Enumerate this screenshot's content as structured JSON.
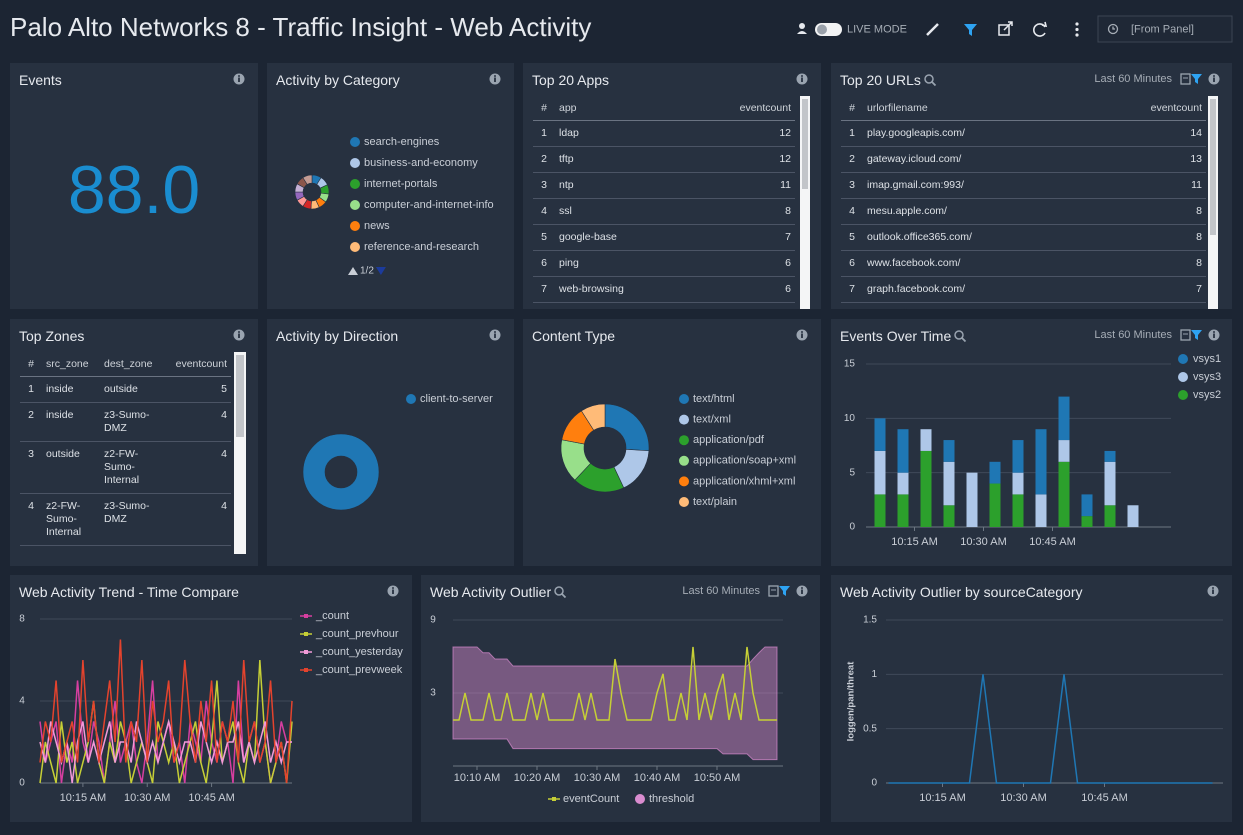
{
  "header": {
    "title": "Palo Alto Networks 8 - Traffic Insight - Web Activity",
    "live_mode": "LIVE MODE",
    "time_range": "[From Panel]"
  },
  "panels": [
    {
      "title": "Events",
      "value": "88.0"
    },
    {
      "title": "Activity by Category",
      "chart": {
        "type": "pie",
        "legend": "right",
        "pager": "1/2",
        "categories": [
          "search-engines",
          "business-and-economy",
          "internet-portals",
          "computer-and-internet-info",
          "news",
          "reference-and-research",
          null,
          null,
          null,
          null,
          null,
          null
        ],
        "values": [
          9,
          9,
          9,
          8,
          8,
          8,
          8,
          8,
          8,
          8,
          8,
          9
        ],
        "colors": [
          "#1f77b4",
          "#aec7e8",
          "#2ca02c",
          "#98df8a",
          "#ff7f0e",
          "#ffbb78",
          "#d62728",
          "#ff9896",
          "#9467bd",
          "#c5b0d5",
          "#8c564b",
          "#c49c94"
        ]
      }
    },
    {
      "title": "Top 20 Apps",
      "table": {
        "columns": [
          "#",
          "app",
          "eventcount"
        ],
        "rows": [
          [
            1,
            "ldap",
            12
          ],
          [
            2,
            "tftp",
            12
          ],
          [
            3,
            "ntp",
            11
          ],
          [
            4,
            "ssl",
            8
          ],
          [
            5,
            "google-base",
            7
          ],
          [
            6,
            "ping",
            6
          ],
          [
            7,
            "web-browsing",
            6
          ]
        ]
      }
    },
    {
      "title": "Top 20 URLs",
      "time_range": "Last 60 Minutes",
      "table": {
        "columns": [
          "#",
          "urlorfilename",
          "eventcount"
        ],
        "rows": [
          [
            1,
            "play.googleapis.com/",
            14
          ],
          [
            2,
            "gateway.icloud.com/",
            13
          ],
          [
            3,
            "imap.gmail.com:993/",
            11
          ],
          [
            4,
            "mesu.apple.com/",
            8
          ],
          [
            5,
            "outlook.office365.com/",
            8
          ],
          [
            6,
            "www.facebook.com/",
            8
          ],
          [
            7,
            "graph.facebook.com/",
            7
          ]
        ]
      }
    },
    {
      "title": "Top Zones",
      "table": {
        "columns": [
          "#",
          "src_zone",
          "dest_zone",
          "eventcount"
        ],
        "rows": [
          [
            1,
            "inside",
            "outside",
            5
          ],
          [
            2,
            "inside",
            "z3-Sumo-DMZ",
            4
          ],
          [
            3,
            "outside",
            "z2-FW-Sumo-Internal",
            4
          ],
          [
            4,
            "z2-FW-Sumo-Internal",
            "z3-Sumo-DMZ",
            4
          ]
        ]
      }
    },
    {
      "title": "Activity by Direction",
      "chart": {
        "type": "pie",
        "legend": "right",
        "categories": [
          "client-to-server"
        ],
        "values": [
          100
        ],
        "colors": [
          "#1f77b4"
        ]
      }
    },
    {
      "title": "Content Type",
      "chart": {
        "type": "pie",
        "legend": "right",
        "categories": [
          "text/html",
          "text/xml",
          "application/pdf",
          "application/soap+xml",
          "application/xhml+xml",
          "text/plain"
        ],
        "values": [
          26,
          17,
          19,
          16,
          13,
          9
        ],
        "colors": [
          "#1f77b4",
          "#aec7e8",
          "#2ca02c",
          "#98df8a",
          "#ff7f0e",
          "#ffbb78"
        ]
      }
    },
    {
      "title": "Events Over Time",
      "time_range": "Last 60 Minutes",
      "chart": {
        "type": "stacked_bar",
        "legend": "right",
        "grid": true,
        "xticks": [
          {
            "value": 1.5,
            "label": "10:15 AM"
          },
          {
            "value": 4.5,
            "label": "10:30 AM"
          },
          {
            "value": 7.5,
            "label": "10:45 AM"
          }
        ],
        "ylim": [
          0,
          15
        ],
        "yticks": [
          0,
          5,
          10,
          15
        ],
        "series": [
          {
            "name": "vsys1",
            "color": "#1f77b4",
            "values": [
              3,
              4,
              0,
              2,
              0,
              2,
              3,
              6,
              4,
              2,
              1,
              0
            ]
          },
          {
            "name": "vsys3",
            "color": "#aec7e8",
            "values": [
              4,
              2,
              2,
              4,
              5,
              0,
              2,
              3,
              2,
              0,
              4,
              2
            ]
          },
          {
            "name": "vsys2",
            "color": "#2ca02c",
            "values": [
              3,
              3,
              7,
              2,
              0,
              4,
              3,
              0,
              6,
              1,
              2,
              0
            ]
          }
        ]
      }
    },
    {
      "title": "Web Activity Trend - Time Compare",
      "chart": {
        "type": "line",
        "legend": "right",
        "grid": true,
        "xticks": [
          {
            "value": 8,
            "label": "10:15 AM"
          },
          {
            "value": 20,
            "label": "10:30 AM"
          },
          {
            "value": 32,
            "label": "10:45 AM"
          }
        ],
        "ylim": [
          0,
          8
        ],
        "yticks": [
          0,
          4,
          8
        ],
        "series": [
          {
            "name": "_count",
            "color": "#d63fa0",
            "values": [
              3,
              1,
              2,
              3,
              0,
              2,
              1,
              5,
              2,
              1,
              3,
              2,
              0,
              2,
              4,
              1,
              2,
              3,
              1,
              0,
              2,
              5,
              1,
              2,
              3,
              1,
              2,
              0,
              3,
              2,
              1,
              4,
              2,
              1,
              3,
              2,
              0,
              5,
              1,
              2,
              3,
              1,
              2,
              0,
              1,
              3,
              2,
              2
            ]
          },
          {
            "name": "_count_prevhour",
            "color": "#c6cf36",
            "values": [
              0,
              2,
              1,
              0,
              3,
              1,
              2,
              0,
              1,
              2,
              4,
              1,
              0,
              2,
              1,
              3,
              2,
              0,
              1,
              2,
              1,
              0,
              3,
              2,
              1,
              2,
              0,
              1,
              2,
              3,
              1,
              0,
              2,
              5,
              1,
              2,
              3,
              1,
              0,
              2,
              1,
              6,
              2,
              0,
              1,
              2,
              0,
              3
            ]
          },
          {
            "name": "_count_yesterday",
            "color": "#f29ad8",
            "values": [
              2,
              1,
              3,
              2,
              1,
              2,
              0,
              2,
              3,
              1,
              2,
              1,
              2,
              3,
              1,
              2,
              2,
              1,
              3,
              2,
              1,
              2,
              1,
              2,
              3,
              2,
              1,
              2,
              2,
              1,
              3,
              2,
              1,
              2,
              1,
              2,
              2,
              3,
              1,
              2,
              1,
              2,
              3,
              1,
              2,
              1,
              2,
              2
            ]
          },
          {
            "name": "_count_prevweek",
            "color": "#e4432d",
            "values": [
              1,
              3,
              2,
              5,
              1,
              2,
              3,
              1,
              6,
              2,
              4,
              1,
              3,
              5,
              2,
              7,
              1,
              3,
              2,
              6,
              1,
              4,
              2,
              3,
              5,
              1,
              2,
              6,
              3,
              1,
              4,
              2,
              5,
              1,
              3,
              2,
              4,
              1,
              6,
              2,
              3,
              1,
              2,
              5,
              1,
              2,
              0,
              4
            ]
          }
        ]
      }
    },
    {
      "title": "Web Activity Outlier",
      "time_range": "Last 60 Minutes",
      "chart": {
        "type": "outlier",
        "legend": "bottom",
        "grid": true,
        "scale": "log",
        "xticks": [
          {
            "value": 4,
            "label": "10:10 AM"
          },
          {
            "value": 14,
            "label": "10:20 AM"
          },
          {
            "value": 24,
            "label": "10:30 AM"
          },
          {
            "value": 34,
            "label": "10:40 AM"
          },
          {
            "value": 44,
            "label": "10:50 AM"
          }
        ],
        "ylim": [
          1,
          9
        ],
        "yticks": [
          3,
          9
        ],
        "series": [
          {
            "name": "eventCount",
            "color": "#c6cf36",
            "values": [
              2,
              2,
              3,
              2,
              2,
              2,
              3,
              2,
              2,
              3,
              2,
              2,
              2,
              3,
              2,
              3,
              2,
              2,
              2,
              2,
              2,
              3,
              2,
              3,
              2,
              2,
              2,
              5,
              3,
              2,
              2,
              2,
              2,
              2,
              3,
              4,
              2,
              2,
              3,
              2,
              6,
              2,
              3,
              2,
              3,
              4,
              2,
              3,
              2,
              6,
              3,
              2,
              2,
              2,
              2
            ]
          },
          {
            "name": "threshold",
            "color": "#d98ccf",
            "upper": [
              6,
              6,
              6,
              6,
              6,
              5.5,
              5.5,
              5,
              5,
              5,
              4.5,
              4.5,
              4.5,
              4.5,
              4.5,
              4.5,
              4.5,
              4.5,
              4.5,
              4.5,
              4.5,
              4.5,
              4.5,
              4.5,
              4.5,
              4.5,
              4.5,
              4.5,
              4.5,
              4.5,
              4.5,
              4.5,
              4.5,
              4.5,
              4.5,
              4.5,
              4.5,
              4.5,
              4.5,
              4.5,
              4.5,
              4.5,
              4.5,
              4.5,
              4.5,
              4.5,
              4.5,
              4.5,
              4.5,
              4.5,
              5,
              5.5,
              6,
              6,
              6
            ],
            "lower": [
              1.5,
              1.5,
              1.5,
              1.5,
              1.5,
              1.5,
              1.5,
              1.5,
              1.5,
              1.5,
              1.3,
              1.3,
              1.3,
              1.3,
              1.3,
              1.3,
              1.3,
              1.3,
              1.3,
              1.3,
              1.3,
              1.3,
              1.3,
              1.3,
              1.3,
              1.3,
              1.3,
              1.3,
              1.3,
              1.3,
              1.3,
              1.3,
              1.3,
              1.3,
              1.3,
              1.3,
              1.3,
              1.3,
              1.3,
              1.3,
              1.3,
              1.3,
              1.3,
              1.3,
              1.3,
              1.2,
              1.2,
              1.2,
              1.2,
              1.2,
              1.1,
              1.1,
              1.1,
              1.1,
              1.1
            ]
          }
        ]
      }
    },
    {
      "title": "Web Activity Outlier by sourceCategory",
      "chart": {
        "type": "line",
        "grid": true,
        "ylabel": "loggen/pan/threat",
        "xticks": [
          {
            "value": 4,
            "label": "10:15 AM"
          },
          {
            "value": 10,
            "label": "10:30 AM"
          },
          {
            "value": 16,
            "label": "10:45 AM"
          }
        ],
        "ylim": [
          0,
          1.5
        ],
        "yticks": [
          0,
          0.5,
          1,
          1.5
        ],
        "series": [
          {
            "color": "#1f77b4",
            "values": [
              0,
              0,
              0,
              0,
              0,
              0,
              0,
              1,
              0,
              0,
              0,
              0,
              0,
              1,
              0,
              0,
              0,
              0,
              0,
              0,
              0,
              0,
              0,
              0,
              0
            ]
          }
        ]
      }
    }
  ]
}
